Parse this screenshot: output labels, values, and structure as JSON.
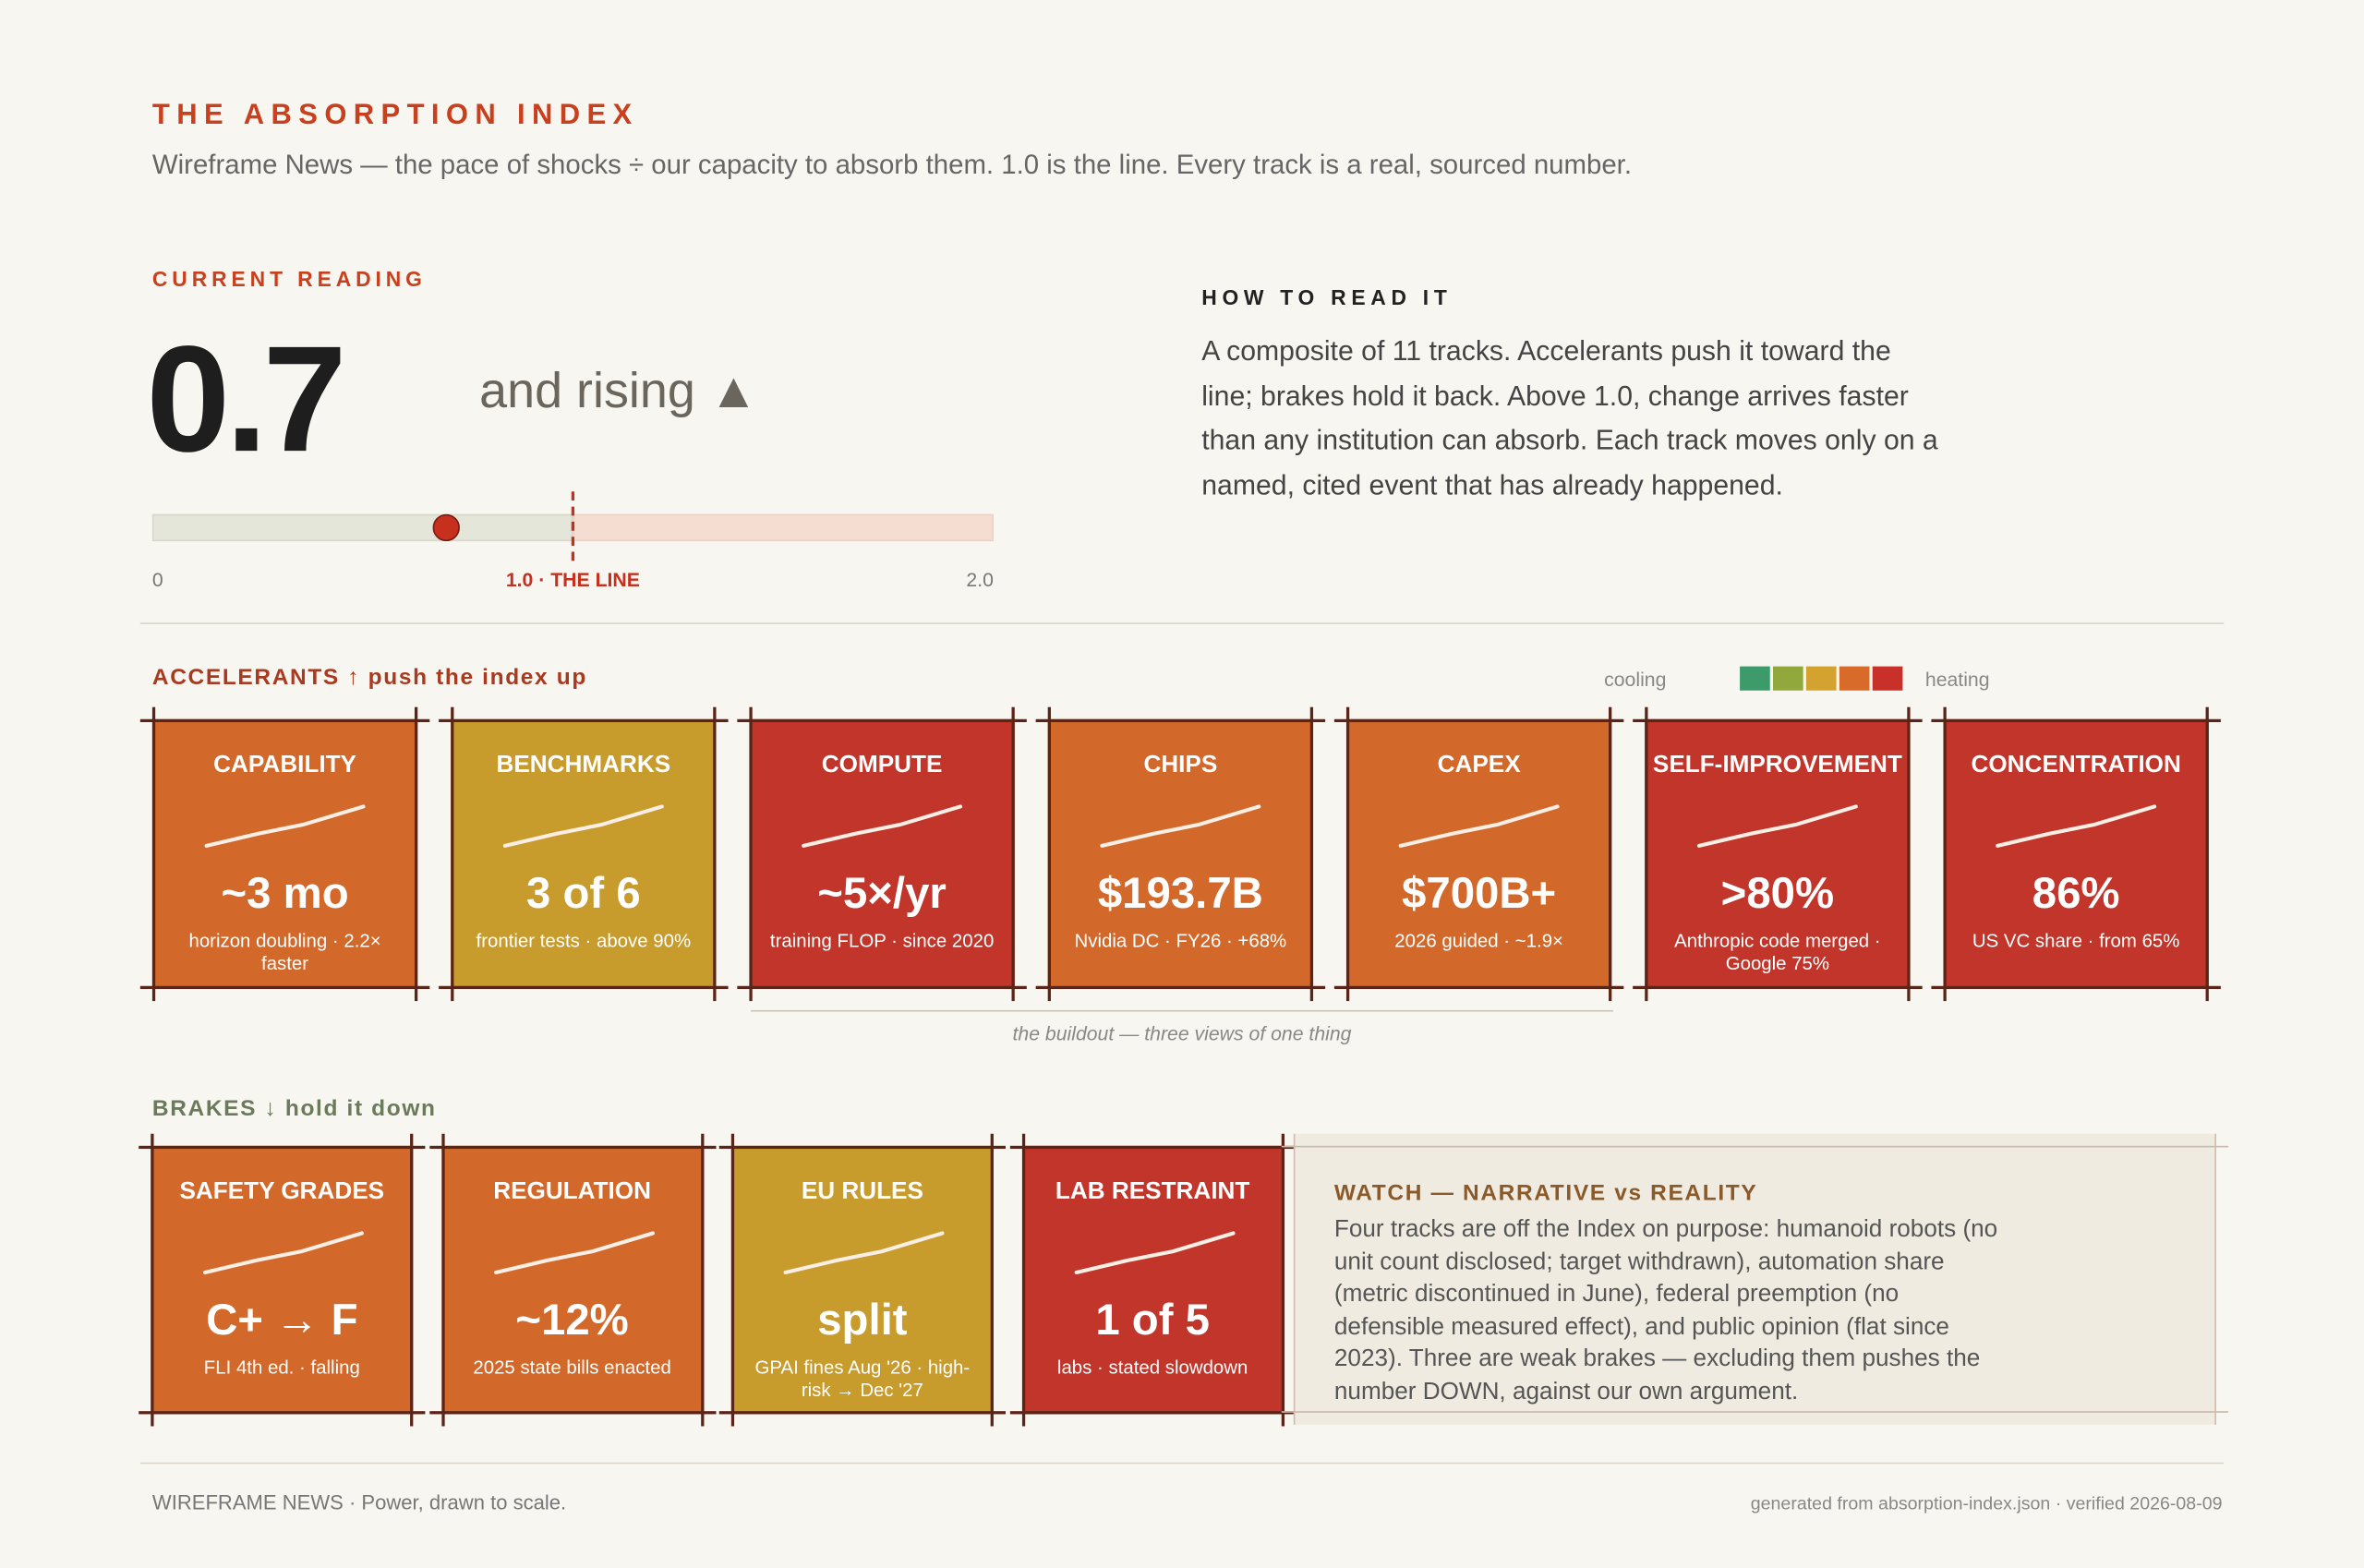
{
  "header": {
    "title": "THE ABSORPTION INDEX",
    "subtitle": "Wireframe News — the pace of shocks ÷ our capacity to absorb them. 1.0 is the line. Every track is a real, sourced number."
  },
  "reading": {
    "label": "CURRENT READING",
    "value": 0.7,
    "trend": "and rising ▲",
    "gauge": {
      "min": 0,
      "line": {
        "value": 1,
        "label": "1.0 · THE LINE"
      },
      "max": {
        "value": 2,
        "label": "2.0"
      }
    }
  },
  "how_to_read": {
    "title": "HOW TO READ IT",
    "text": "A composite of 11 tracks. Accelerants push it toward the line; brakes hold it back. Above 1.0, change arrives faster than any institution can absorb. Each track moves only on a named, cited event that has already happened."
  },
  "legend": {
    "low": "cooling",
    "high": "heating",
    "colors": [
      "#3d9a6b",
      "#93a83c",
      "#d4a22f",
      "#d86a2a",
      "#c8312a"
    ]
  },
  "accelerants": {
    "label": "ACCELERANTS ↑ push the index up",
    "cards": [
      {
        "name": "CAPABILITY",
        "value": "~3 mo",
        "note": "horizon doubling · 2.2× faster",
        "color": "#d2692b"
      },
      {
        "name": "BENCHMARKS",
        "value": "3 of 6",
        "note": "frontier tests · above 90%",
        "color": "#c89b2d"
      },
      {
        "name": "COMPUTE",
        "value": "~5×/yr",
        "note": "training FLOP · since 2020",
        "color": "#c1352a"
      },
      {
        "name": "CHIPS",
        "value": "$193.7B",
        "note": "Nvidia DC · FY26 · +68%",
        "color": "#d2692b"
      },
      {
        "name": "CAPEX",
        "value": "$700B+",
        "note": "2026 guided · ~1.9×",
        "color": "#d2692b"
      },
      {
        "name": "SELF-IMPROVEMENT",
        "value": ">80%",
        "note": "Anthropic code merged · Google 75%",
        "color": "#c1352a"
      },
      {
        "name": "CONCENTRATION",
        "value": "86%",
        "note": "US VC share · from 65%",
        "color": "#c1352a"
      }
    ],
    "group_note": "the buildout — three views of one thing"
  },
  "brakes": {
    "label": "BRAKES ↓ hold it down",
    "cards": [
      {
        "name": "SAFETY GRADES",
        "value": "C+ → F",
        "note": "FLI 4th ed. · falling",
        "color": "#d2692b"
      },
      {
        "name": "REGULATION",
        "value": "~12%",
        "note": "2025 state bills enacted",
        "color": "#d2692b"
      },
      {
        "name": "EU RULES",
        "value": "split",
        "note": "GPAI fines Aug '26 · high-risk → Dec '27",
        "color": "#c89b2d"
      },
      {
        "name": "LAB RESTRAINT",
        "value": "1 of 5",
        "note": "labs · stated slowdown",
        "color": "#c1352a"
      }
    ]
  },
  "watch": {
    "title": "WATCH — NARRATIVE vs REALITY",
    "text": "Four tracks are off the Index on purpose: humanoid robots (no unit count disclosed; target withdrawn), automation share (metric discontinued in June), federal preemption (no defensible measured effect), and public opinion (flat since 2023). Three are weak brakes — excluding them pushes the number DOWN, against our own argument."
  },
  "footer": {
    "left": "WIREFRAME NEWS · Power, drawn to scale.",
    "right": "generated from absorption-index.json · verified 2026-08-09"
  }
}
